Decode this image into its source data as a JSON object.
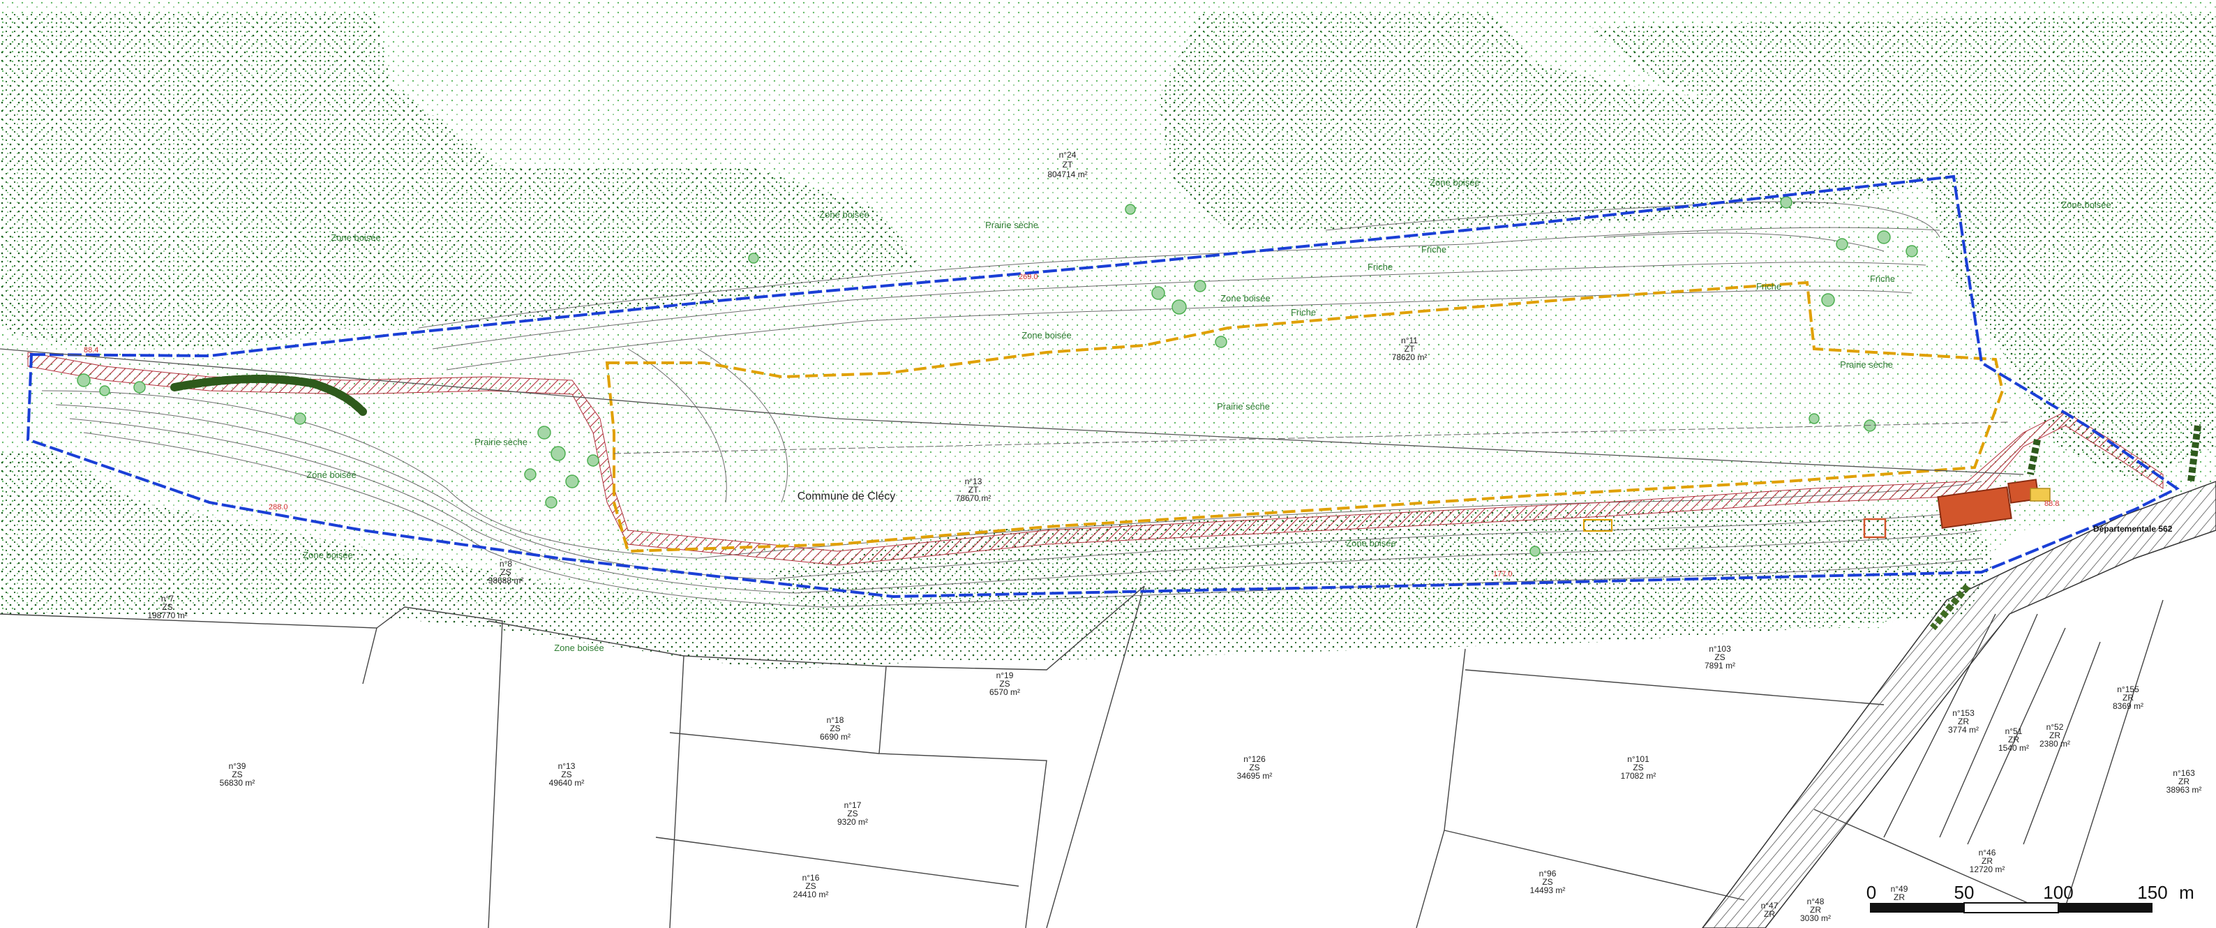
{
  "colors": {
    "background": "#ffffff",
    "zone_boisee_dots": "#1b5e20",
    "prairie_dots": "#66bb6a",
    "perimeter_line": "#1a3fd6",
    "project_line": "#e0a000",
    "hatched_band": "#b0303a",
    "building_fill": "#d2552b",
    "tree_row": "#2e5a1c",
    "label_green": "#2e7d32",
    "label_red": "#d32f2f",
    "contour": "#6d6d6d"
  },
  "map": {
    "commune_label": "Commune de Clécy",
    "road_label": "Départementale 562",
    "zones": [
      {
        "id": "zb1",
        "label": "Zone boisée"
      },
      {
        "id": "zb2",
        "label": "Zone boisée"
      },
      {
        "id": "zb3",
        "label": "Zone boisée"
      },
      {
        "id": "zb4",
        "label": "Zone boisée"
      },
      {
        "id": "zb5",
        "label": "Zone boisée"
      },
      {
        "id": "zb6",
        "label": "Zone boisée"
      },
      {
        "id": "zb7",
        "label": "Zone boisée"
      },
      {
        "id": "zb8",
        "label": "Zone boisée"
      },
      {
        "id": "zb9",
        "label": "Zone boisée"
      },
      {
        "id": "zb10",
        "label": "Zone boisée"
      },
      {
        "id": "ps1",
        "label": "Prairie sèche"
      },
      {
        "id": "ps2",
        "label": "Prairie sèche"
      },
      {
        "id": "ps3",
        "label": "Prairie sèche"
      },
      {
        "id": "ps4",
        "label": "Prairie sèche"
      },
      {
        "id": "fr1",
        "label": "Friche"
      },
      {
        "id": "fr2",
        "label": "Friche"
      },
      {
        "id": "fr3",
        "label": "Friche"
      },
      {
        "id": "fr4",
        "label": "Friche"
      },
      {
        "id": "fr5",
        "label": "Friche"
      }
    ],
    "parcels": [
      {
        "id": "p24",
        "num": "n°24",
        "section": "ZT",
        "area": "804714 m²"
      },
      {
        "id": "p11",
        "num": "n°11",
        "section": "ZT",
        "area": "78620 m²"
      },
      {
        "id": "p13zt",
        "num": "n°13",
        "section": "ZT",
        "area": "78670 m²"
      },
      {
        "id": "p7",
        "num": "n°7",
        "section": "ZS",
        "area": "198770 m²"
      },
      {
        "id": "p8",
        "num": "n°8",
        "section": "ZS",
        "area": "98688 m²"
      },
      {
        "id": "p39",
        "num": "n°39",
        "section": "ZS",
        "area": "56830 m²"
      },
      {
        "id": "p13zs",
        "num": "n°13",
        "section": "ZS",
        "area": "49640 m²"
      },
      {
        "id": "p18",
        "num": "n°18",
        "section": "ZS",
        "area": "6690 m²"
      },
      {
        "id": "p19",
        "num": "n°19",
        "section": "ZS",
        "area": "6570 m²"
      },
      {
        "id": "p17",
        "num": "n°17",
        "section": "ZS",
        "area": "9320 m²"
      },
      {
        "id": "p16",
        "num": "n°16",
        "section": "ZS",
        "area": "24410 m²"
      },
      {
        "id": "p126",
        "num": "n°126",
        "section": "ZS",
        "area": "34695 m²"
      },
      {
        "id": "p103",
        "num": "n°103",
        "section": "ZS",
        "area": "7891 m²"
      },
      {
        "id": "p101",
        "num": "n°101",
        "section": "ZS",
        "area": "17082 m²"
      },
      {
        "id": "p96",
        "num": "n°96",
        "section": "ZS",
        "area": "14493 m²"
      },
      {
        "id": "p153",
        "num": "n°153",
        "section": "ZR",
        "area": "3774 m²"
      },
      {
        "id": "p51",
        "num": "n°51",
        "section": "ZR",
        "area": "1540 m²"
      },
      {
        "id": "p52",
        "num": "n°52",
        "section": "ZR",
        "area": "2380 m²"
      },
      {
        "id": "p155",
        "num": "n°155",
        "section": "ZR",
        "area": "8369 m²"
      },
      {
        "id": "p163",
        "num": "n°163",
        "section": "ZR",
        "area": "38963 m²"
      },
      {
        "id": "p46",
        "num": "n°46",
        "section": "ZR",
        "area": "12720 m²"
      },
      {
        "id": "p49",
        "num": "n°49",
        "section": "ZR",
        "area": ""
      },
      {
        "id": "p47",
        "num": "n°47",
        "section": "ZR",
        "area": ""
      },
      {
        "id": "p48",
        "num": "n°48",
        "section": "ZR",
        "area": "3030 m²"
      }
    ],
    "elevation_labels": [
      "88.4",
      "269.0",
      "288.0",
      "177.0",
      "88.8"
    ],
    "scale_bar": {
      "ticks": [
        "0",
        "50",
        "100",
        "150"
      ],
      "unit": "m"
    }
  }
}
